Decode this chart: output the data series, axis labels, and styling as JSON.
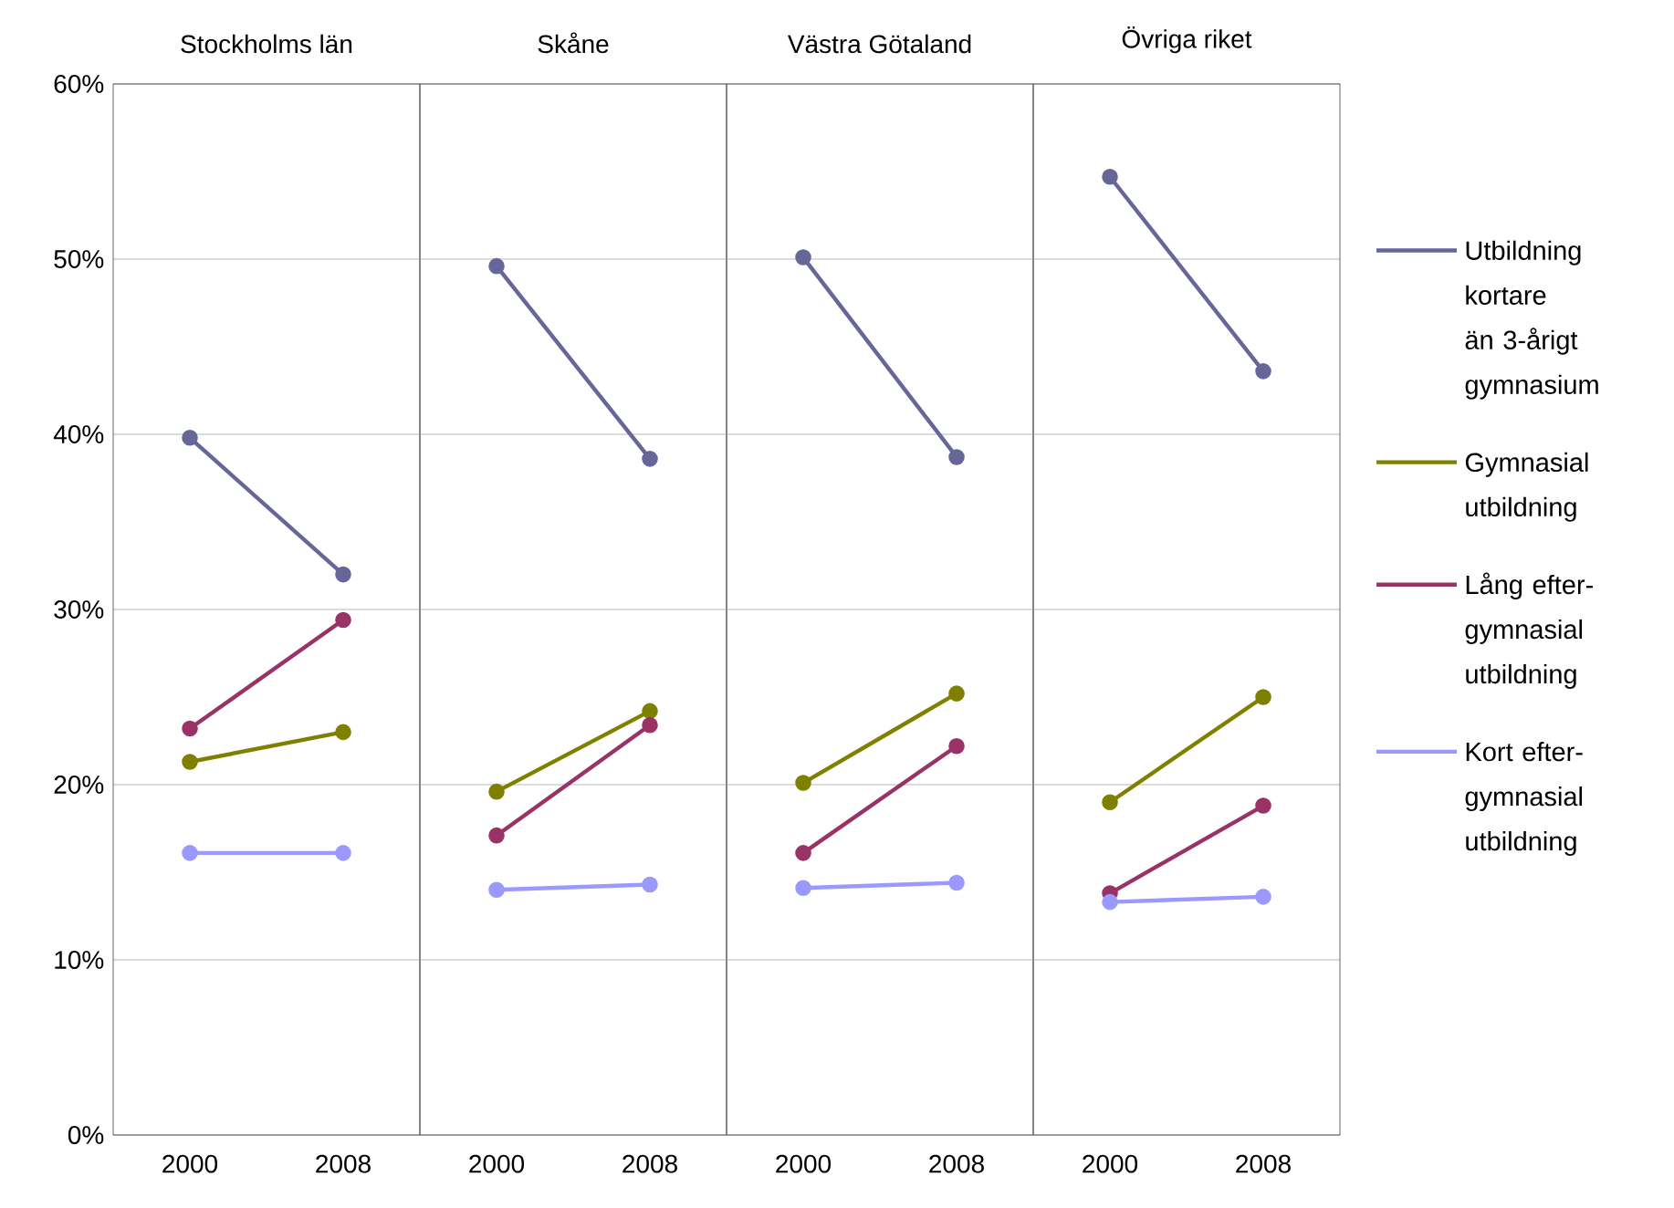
{
  "chart_data": [
    {
      "type": "line",
      "title": "Stockholms län",
      "categories": [
        "2000",
        "2008"
      ],
      "ylim": [
        0,
        60
      ],
      "yticks": [
        {
          "value": 0,
          "label": "0%"
        },
        {
          "value": 10,
          "label": "10%"
        },
        {
          "value": 20,
          "label": "20%"
        },
        {
          "value": 30,
          "label": "30%"
        },
        {
          "value": 40,
          "label": "40%"
        },
        {
          "value": 50,
          "label": "50%"
        },
        {
          "value": 60,
          "label": "60%"
        }
      ],
      "grid": "y",
      "marker": "circle",
      "legend": false,
      "series": [
        {
          "color": "#666699",
          "values": [
            39.8,
            32.0
          ]
        },
        {
          "color": "#808000",
          "values": [
            21.3,
            23.0
          ]
        },
        {
          "color": "#993366",
          "values": [
            23.2,
            29.4
          ]
        },
        {
          "color": "#9999ff",
          "values": [
            16.1,
            16.1
          ]
        }
      ]
    },
    {
      "type": "line",
      "title": "Skåne",
      "categories": [
        "2000",
        "2008"
      ],
      "ylim": [
        0,
        60
      ],
      "yticks": [
        0,
        10,
        20,
        30,
        40,
        50,
        60
      ],
      "grid": "y",
      "marker": "circle",
      "legend": false,
      "tick_labels": "x",
      "series": [
        {
          "color": "#666699",
          "values": [
            49.6,
            38.6
          ]
        },
        {
          "color": "#808000",
          "values": [
            19.6,
            24.2
          ]
        },
        {
          "color": "#993366",
          "values": [
            17.1,
            23.4
          ]
        },
        {
          "color": "#9999ff",
          "values": [
            14.0,
            14.3
          ]
        }
      ]
    },
    {
      "type": "line",
      "title": "Västra Götaland",
      "categories": [
        "2000",
        "2008"
      ],
      "ylim": [
        0,
        60
      ],
      "yticks": [
        0,
        10,
        20,
        30,
        40,
        50,
        60
      ],
      "grid": "y",
      "marker": "circle",
      "legend": false,
      "tick_labels": "x",
      "series": [
        {
          "color": "#666699",
          "values": [
            50.1,
            38.7
          ]
        },
        {
          "color": "#808000",
          "values": [
            20.1,
            25.2
          ]
        },
        {
          "color": "#993366",
          "values": [
            16.1,
            22.2
          ]
        },
        {
          "color": "#9999ff",
          "values": [
            14.1,
            14.4
          ]
        }
      ]
    },
    {
      "type": "line",
      "title": "Övriga riket",
      "categories": [
        "2000",
        "2008"
      ],
      "ylim": [
        0,
        60
      ],
      "yticks": [
        0,
        10,
        20,
        30,
        40,
        50,
        60
      ],
      "grid": "y",
      "marker": "circle",
      "legend": "right",
      "tick_labels": "x",
      "series": [
        {
          "name": "Utbildning kortare än 3-årigt gymnasium",
          "color": "#666699",
          "values": [
            54.7,
            43.6
          ]
        },
        {
          "name": "Gymnasial utbildning",
          "color": "#808000",
          "values": [
            19.0,
            25.0
          ]
        },
        {
          "name": "Lång efter-gymnasial utbildning",
          "color": "#993366",
          "values": [
            13.8,
            18.8
          ]
        },
        {
          "name": "Kort efter-gymnasial utbildning",
          "color": "#9999ff",
          "values": [
            13.3,
            13.6
          ]
        }
      ]
    }
  ]
}
